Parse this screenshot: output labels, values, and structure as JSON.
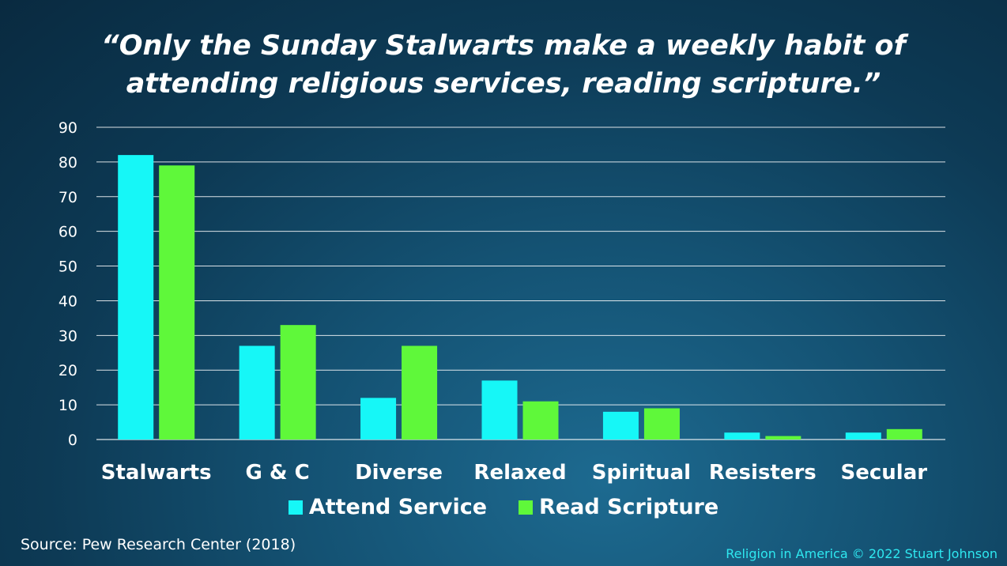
{
  "title_lines": [
    "“Only the Sunday Stalwarts make a weekly habit of",
    "attending religious services, reading scripture.”"
  ],
  "source": "Source: Pew Research Center  (2018)",
  "credit": "Religion in America © 2022 Stuart Johnson",
  "colors": {
    "attend": "#16f7f7",
    "read": "#5ff83a",
    "grid": "#ffffff"
  },
  "chart_data": {
    "type": "bar",
    "title": "“Only the Sunday Stalwarts make a weekly habit of attending religious services, reading scripture.”",
    "xlabel": "",
    "ylabel": "",
    "ylim": [
      0,
      90
    ],
    "yticks": [
      0,
      10,
      20,
      30,
      40,
      50,
      60,
      70,
      80,
      90
    ],
    "grid": true,
    "legend_position": "bottom",
    "categories": [
      "Stalwarts",
      "G & C",
      "Diverse",
      "Relaxed",
      "Spiritual",
      "Resisters",
      "Secular"
    ],
    "series": [
      {
        "name": "Attend Service",
        "values": [
          82,
          27,
          12,
          17,
          8,
          2,
          2
        ]
      },
      {
        "name": "Read Scripture",
        "values": [
          79,
          33,
          27,
          11,
          9,
          1,
          3
        ]
      }
    ]
  }
}
